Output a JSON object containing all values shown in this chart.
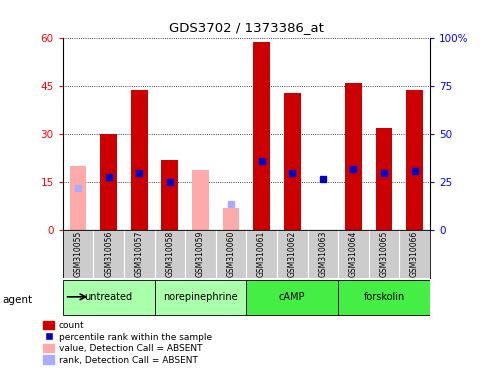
{
  "title": "GDS3702 / 1373386_at",
  "samples": [
    "GSM310055",
    "GSM310056",
    "GSM310057",
    "GSM310058",
    "GSM310059",
    "GSM310060",
    "GSM310061",
    "GSM310062",
    "GSM310063",
    "GSM310064",
    "GSM310065",
    "GSM310066"
  ],
  "groups": [
    {
      "label": "untreated",
      "start": 0,
      "end": 2
    },
    {
      "label": "norepinephrine",
      "start": 3,
      "end": 5
    },
    {
      "label": "cAMP",
      "start": 6,
      "end": 8
    },
    {
      "label": "forskolin",
      "start": 9,
      "end": 11
    }
  ],
  "group_colors": [
    "#aaffaa",
    "#aaffaa",
    "#44ee44",
    "#44ee44"
  ],
  "count_values": [
    null,
    30,
    44,
    22,
    null,
    null,
    59,
    43,
    null,
    46,
    32,
    44
  ],
  "count_absent": [
    20,
    null,
    null,
    null,
    19,
    7,
    null,
    null,
    null,
    null,
    null,
    null
  ],
  "percentile_values": [
    null,
    28,
    30,
    25,
    null,
    null,
    36,
    30,
    27,
    32,
    30,
    31
  ],
  "percentile_absent": [
    22,
    null,
    null,
    null,
    null,
    14,
    null,
    null,
    null,
    null,
    null,
    null
  ],
  "ylim_left": [
    0,
    60
  ],
  "ylim_right": [
    0,
    100
  ],
  "yticks_left": [
    0,
    15,
    30,
    45,
    60
  ],
  "yticks_right": [
    0,
    25,
    50,
    75,
    100
  ],
  "ytick_labels_right": [
    "0",
    "25",
    "50",
    "75",
    "100%"
  ],
  "bar_color_red": "#cc0000",
  "bar_color_pink": "#ffaaaa",
  "dot_color_blue": "#0000cc",
  "dot_color_lightblue": "#aaaaff",
  "legend_items": [
    {
      "color": "#cc0000",
      "type": "patch",
      "label": "count"
    },
    {
      "color": "#0000cc",
      "type": "square",
      "label": "percentile rank within the sample"
    },
    {
      "color": "#ffaaaa",
      "type": "patch",
      "label": "value, Detection Call = ABSENT"
    },
    {
      "color": "#aaaaff",
      "type": "patch",
      "label": "rank, Detection Call = ABSENT"
    }
  ]
}
